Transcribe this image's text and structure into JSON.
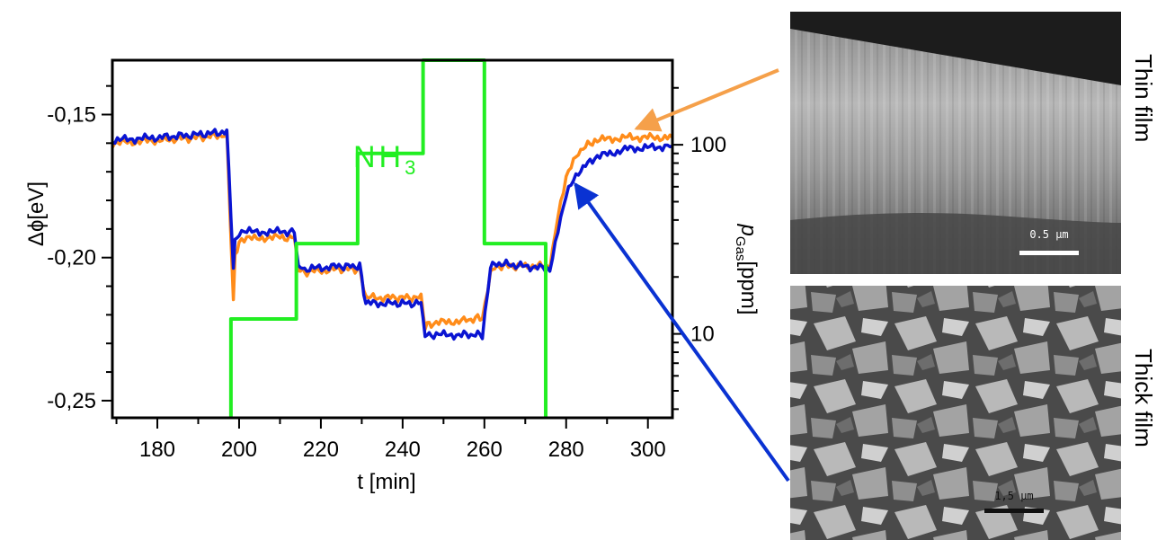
{
  "chart_data": {
    "type": "line",
    "xlabel": "t [min]",
    "ylabel_left": "Δϕ[eV]",
    "ylabel_right": "p_Gas[ppm]",
    "ylabel_right_base": "p",
    "ylabel_right_sub": "Gas",
    "ylabel_right_unit": "[ppm]",
    "xlim": [
      169,
      306
    ],
    "ylim_left": [
      -0.256,
      -0.131
    ],
    "ylim_right_log": [
      3.6,
      280
    ],
    "x_ticks": [
      180,
      200,
      220,
      240,
      260,
      280,
      300
    ],
    "x_tick_labels": [
      "180",
      "200",
      "220",
      "240",
      "260",
      "280",
      "300"
    ],
    "y_left_ticks": [
      -0.15,
      -0.2,
      -0.25
    ],
    "y_left_tick_labels": [
      "-0,15",
      "-0,20",
      "-0,25"
    ],
    "y_right_ticks": [
      10,
      100
    ],
    "y_right_tick_labels": [
      "10",
      "100"
    ],
    "gas_label_base": "NH",
    "gas_label_sub": "3",
    "colors": {
      "thin": "#ff8c1a",
      "thick": "#0a14d2",
      "gas": "#22ee22"
    },
    "series": [
      {
        "key": "thin",
        "x": [
          169,
          180,
          190,
          197,
          198,
          198.6,
          199,
          200,
          205,
          210,
          213.5,
          214.5,
          216,
          225,
          229.5,
          231,
          237,
          244.5,
          245.5,
          247,
          255,
          259.5,
          261.5,
          263,
          270,
          276,
          278,
          280,
          283,
          287,
          295,
          306
        ],
        "y": [
          -0.16,
          -0.159,
          -0.158,
          -0.157,
          -0.192,
          -0.215,
          -0.2,
          -0.194,
          -0.193,
          -0.193,
          -0.193,
          -0.204,
          -0.205,
          -0.204,
          -0.204,
          -0.214,
          -0.214,
          -0.214,
          -0.224,
          -0.223,
          -0.222,
          -0.221,
          -0.205,
          -0.203,
          -0.203,
          -0.203,
          -0.185,
          -0.172,
          -0.163,
          -0.159,
          -0.158,
          -0.158
        ]
      },
      {
        "key": "thick",
        "x": [
          169,
          180,
          190,
          197,
          198,
          198.6,
          199,
          200,
          205,
          210,
          213.5,
          214.5,
          216,
          225,
          229.5,
          231,
          237,
          244.5,
          245.5,
          247,
          255,
          259.5,
          261.5,
          263,
          270,
          276,
          278,
          280,
          283,
          287,
          295,
          306
        ],
        "y": [
          -0.159,
          -0.158,
          -0.157,
          -0.156,
          -0.185,
          -0.203,
          -0.195,
          -0.191,
          -0.191,
          -0.191,
          -0.191,
          -0.203,
          -0.204,
          -0.203,
          -0.203,
          -0.216,
          -0.216,
          -0.216,
          -0.227,
          -0.227,
          -0.227,
          -0.227,
          -0.203,
          -0.202,
          -0.203,
          -0.204,
          -0.19,
          -0.178,
          -0.17,
          -0.165,
          -0.162,
          -0.161
        ]
      },
      {
        "key": "gas",
        "x": [
          198,
          198,
          214,
          214,
          229,
          229,
          245,
          245,
          260,
          260,
          275,
          275
        ],
        "ppm": [
          3.6,
          12,
          12,
          30,
          30,
          90,
          90,
          280,
          280,
          30,
          30,
          3.6
        ]
      }
    ]
  },
  "annotations": {
    "thin_label": "Thin film",
    "thick_label": "Thick film",
    "thin_scale": "0.5 µm",
    "thick_scale": "1,5 µm",
    "thin_arrow_color": "#f5a04a",
    "thick_arrow_color": "#0a32d2"
  }
}
